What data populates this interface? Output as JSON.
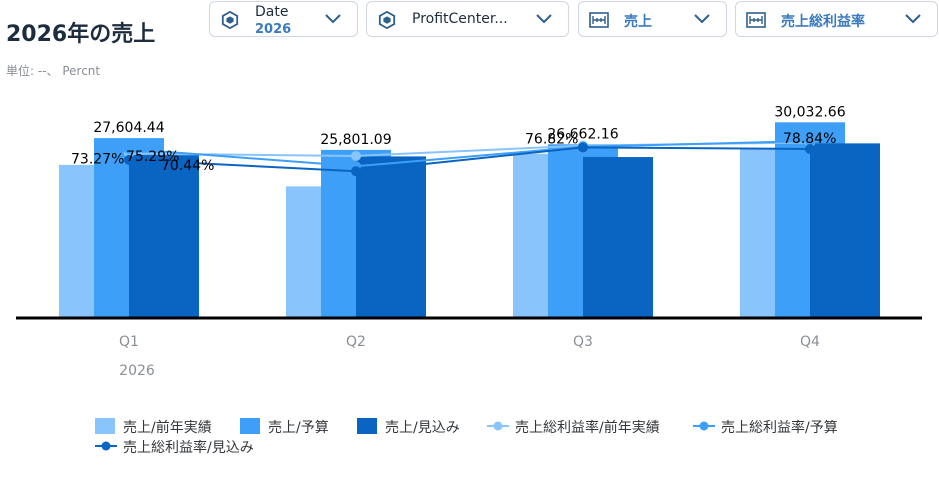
{
  "header": {
    "title": "2026年の売上",
    "unit": "単位: --、 Percnt"
  },
  "filters": [
    {
      "icon": "dimension-cube-icon",
      "label": "Date",
      "value": "2026"
    },
    {
      "icon": "dimension-cube-icon",
      "label": "ProfitCenter...",
      "value": ""
    },
    {
      "icon": "measure-ruler-icon",
      "label": "売上",
      "value": ""
    },
    {
      "icon": "measure-ruler-icon",
      "label": "売上総利益率",
      "value": ""
    }
  ],
  "colors": {
    "light": "#89c4fd",
    "mid": "#3d9ff7",
    "dark": "#0a64c1",
    "axis": "#000000",
    "text": "#32363a",
    "muted": "#8a8f95"
  },
  "chart_data": {
    "type": "bar",
    "categories": [
      "Q1",
      "Q2",
      "Q3",
      "Q4"
    ],
    "group_label": "2026",
    "series": [
      {
        "name": "売上/前年実績",
        "kind": "bar",
        "values": [
          23500,
          20200,
          25200,
          26000
        ]
      },
      {
        "name": "売上/予算",
        "kind": "bar",
        "values": [
          27604.44,
          25801.09,
          26662.16,
          30032.66
        ]
      },
      {
        "name": "売上/見込み",
        "kind": "bar",
        "values": [
          25000,
          24800,
          24700,
          26800
        ]
      }
    ],
    "line_series": [
      {
        "name": "売上総利益率/前年実績",
        "values": [
          73.27,
          72.2,
          76.82,
          78.2
        ]
      },
      {
        "name": "売上総利益率/予算",
        "values": [
          75.29,
          67.6,
          76.3,
          78.84
        ]
      },
      {
        "name": "売上総利益率/見込み",
        "values": [
          70.44,
          65.4,
          76.0,
          75.3
        ]
      }
    ],
    "bar_labels": {
      "series": 1,
      "values": [
        "27,604.44",
        "25,801.09",
        "26,662.16",
        "30,032.66"
      ]
    },
    "line_labels": [
      {
        "series": 0,
        "index": 0,
        "text": "73.27%"
      },
      {
        "series": 1,
        "index": 0,
        "text": "75.29%"
      },
      {
        "series": 2,
        "index": 0,
        "text": "70.44%"
      },
      {
        "series": 0,
        "index": 2,
        "text": "76.82%"
      },
      {
        "series": 1,
        "index": 3,
        "text": "78.84%"
      }
    ],
    "ylim": [
      0,
      31000
    ],
    "y2lim": [
      0,
      90
    ],
    "grid": false,
    "legend": "bottom"
  }
}
